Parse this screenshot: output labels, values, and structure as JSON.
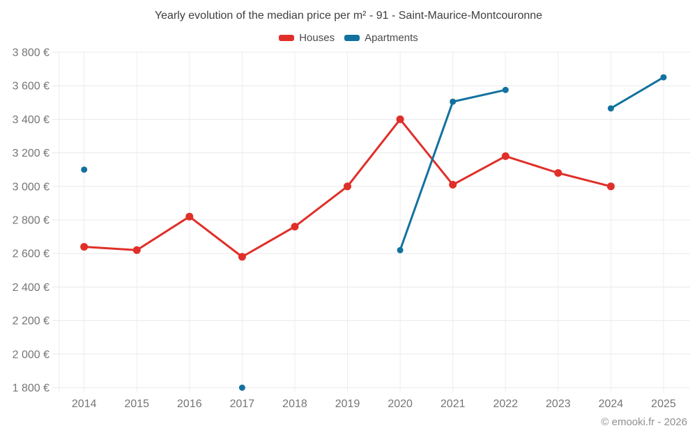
{
  "title": "Yearly evolution of the median price per m² - 91 - Saint-Maurice-Montcouronne",
  "legend": {
    "items": [
      {
        "label": "Houses",
        "color": "#e02f28"
      },
      {
        "label": "Apartments",
        "color": "#1371a0"
      }
    ]
  },
  "footer": {
    "copyright": "© emooki.fr - 2026"
  },
  "chart_data": {
    "type": "line",
    "title": "Yearly evolution of the median price per m² - 91 - Saint-Maurice-Montcouronne",
    "categories": [
      "2014",
      "2015",
      "2016",
      "2017",
      "2018",
      "2019",
      "2020",
      "2021",
      "2022",
      "2023",
      "2024",
      "2025"
    ],
    "series": [
      {
        "name": "Houses",
        "color": "#e02f28",
        "values": [
          2640,
          2620,
          2820,
          2580,
          2760,
          3000,
          3400,
          3010,
          3180,
          3080,
          3000,
          null
        ]
      },
      {
        "name": "Apartments",
        "color": "#1371a0",
        "values": [
          3100,
          null,
          null,
          1800,
          null,
          null,
          2620,
          3505,
          3575,
          null,
          3465,
          3650
        ]
      }
    ],
    "xlabel": "",
    "ylabel": "",
    "ylim": [
      1800,
      3800
    ],
    "ytick_step": 200,
    "y_unit": "€",
    "grid": true,
    "legend_position": "top",
    "annotations": [
      "© emooki.fr - 2026"
    ]
  }
}
